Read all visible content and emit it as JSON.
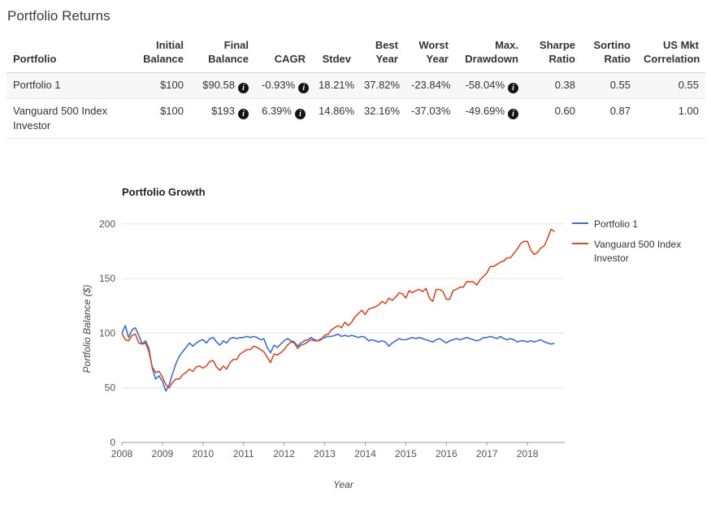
{
  "page": {
    "title": "Portfolio Returns"
  },
  "table": {
    "columns": [
      "Portfolio",
      "Initial Balance",
      "Final Balance",
      "CAGR",
      "Stdev",
      "Best Year",
      "Worst Year",
      "Max. Drawdown",
      "Sharpe Ratio",
      "Sortino Ratio",
      "US Mkt Correlation"
    ],
    "rows": [
      {
        "name": "Portfolio 1",
        "initial": "$100",
        "final": "$90.58",
        "cagr": "-0.93%",
        "stdev": "18.21%",
        "best": "37.82%",
        "worst": "-23.84%",
        "maxdd": "-58.04%",
        "sharpe": "0.38",
        "sortino": "0.55",
        "usmkt": "0.55"
      },
      {
        "name": "Vanguard 500 Index Investor",
        "initial": "$100",
        "final": "$193",
        "cagr": "6.39%",
        "stdev": "14.86%",
        "best": "32.16%",
        "worst": "-37.03%",
        "maxdd": "-49.69%",
        "sharpe": "0.60",
        "sortino": "0.87",
        "usmkt": "1.00"
      }
    ]
  },
  "chart_data": {
    "type": "line",
    "title": "Portfolio Growth",
    "xlabel": "Year",
    "ylabel": "Portfolio Balance ($)",
    "x_start": 2008,
    "x_step_years": 0.0833333,
    "xlim": [
      2008,
      2018.92
    ],
    "ylim": [
      0,
      208
    ],
    "x_ticks": [
      2008,
      2009,
      2010,
      2011,
      2012,
      2013,
      2014,
      2015,
      2016,
      2017,
      2018
    ],
    "y_ticks": [
      0,
      50,
      100,
      150,
      200
    ],
    "grid": "horizontal",
    "legend_position": "right",
    "colors": {
      "grid": "#e5e5e5",
      "axis": "#999999"
    },
    "series": [
      {
        "name": "Portfolio 1",
        "color": "#3d6fc7",
        "values": [
          100,
          107,
          96,
          103,
          105,
          98,
          90,
          93,
          86,
          68,
          58,
          61,
          56,
          47,
          53,
          63,
          72,
          79,
          83,
          87,
          91,
          88,
          91,
          93,
          94,
          91,
          95,
          96,
          92,
          89,
          93,
          91,
          95,
          96,
          95,
          96,
          96,
          97,
          96,
          97,
          96,
          94,
          95,
          87,
          82,
          89,
          87,
          90,
          93,
          95,
          93,
          92,
          88,
          91,
          93,
          94,
          96,
          94,
          93,
          95,
          96,
          97,
          97,
          98,
          99,
          97,
          98,
          97,
          98,
          97,
          96,
          97,
          96,
          93,
          94,
          93,
          92,
          93,
          92,
          88,
          91,
          93,
          95,
          94,
          94,
          95,
          96,
          95,
          96,
          95,
          94,
          93,
          92,
          94,
          95,
          93,
          91,
          93,
          94,
          95,
          94,
          95,
          96,
          95,
          94,
          93,
          94,
          96,
          96,
          97,
          96,
          95,
          97,
          95,
          94,
          95,
          94,
          92,
          93,
          93,
          92,
          93,
          92,
          93,
          94,
          92,
          91,
          90,
          90.58
        ]
      },
      {
        "name": "Vanguard 500 Index Investor",
        "color": "#d54a26",
        "values": [
          100,
          94,
          93,
          98,
          99,
          91,
          90,
          91,
          83,
          69,
          64,
          65,
          60,
          53,
          50,
          55,
          58,
          58,
          62,
          64,
          67,
          65,
          69,
          70,
          68,
          70,
          74,
          75,
          69,
          66,
          70,
          67,
          73,
          76,
          76,
          81,
          83,
          85,
          85,
          88,
          87,
          85,
          83,
          78,
          73,
          81,
          80,
          82,
          85,
          89,
          92,
          91,
          86,
          89,
          90,
          92,
          94,
          93,
          93,
          94,
          98,
          99,
          103,
          105,
          107,
          105,
          110,
          107,
          110,
          115,
          118,
          121,
          117,
          122,
          123,
          124,
          126,
          129,
          127,
          132,
          130,
          133,
          137,
          136,
          132,
          139,
          137,
          139,
          140,
          138,
          141,
          132,
          129,
          140,
          140,
          138,
          131,
          131,
          139,
          140,
          142,
          142,
          147,
          147,
          147,
          144,
          149,
          152,
          155,
          161,
          161,
          163,
          165,
          166,
          169,
          169,
          173,
          177,
          182,
          184,
          184,
          176,
          172,
          174,
          178,
          180,
          187,
          195,
          193
        ]
      }
    ]
  }
}
